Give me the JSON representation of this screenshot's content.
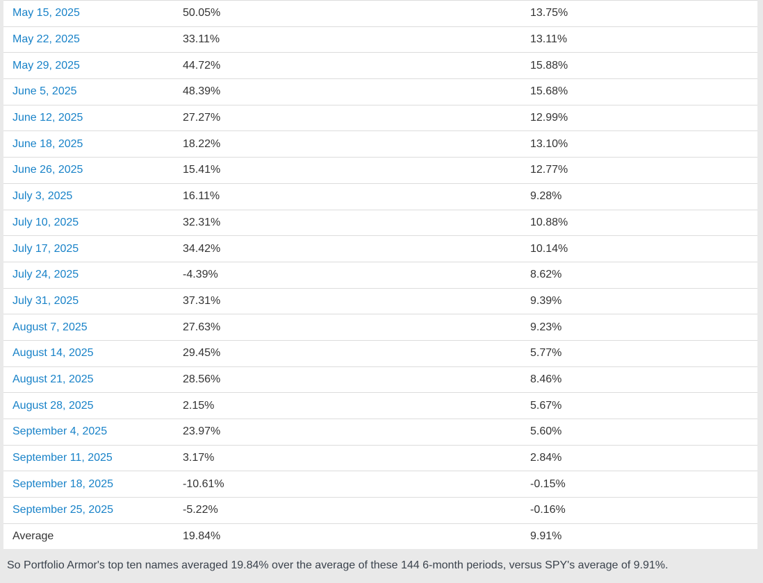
{
  "table": {
    "rows": [
      {
        "date": "May 15, 2025",
        "pa": "50.05%",
        "spy": "13.75%"
      },
      {
        "date": "May 22, 2025",
        "pa": "33.11%",
        "spy": "13.11%"
      },
      {
        "date": "May 29, 2025",
        "pa": "44.72%",
        "spy": "15.88%"
      },
      {
        "date": "June 5, 2025",
        "pa": "48.39%",
        "spy": "15.68%"
      },
      {
        "date": "June 12, 2025",
        "pa": "27.27%",
        "spy": "12.99%"
      },
      {
        "date": "June 18, 2025",
        "pa": "18.22%",
        "spy": "13.10%"
      },
      {
        "date": "June 26, 2025",
        "pa": "15.41%",
        "spy": "12.77%"
      },
      {
        "date": "July 3, 2025",
        "pa": "16.11%",
        "spy": "9.28%"
      },
      {
        "date": "July 10, 2025",
        "pa": "32.31%",
        "spy": "10.88%"
      },
      {
        "date": "July 17, 2025",
        "pa": "34.42%",
        "spy": "10.14%"
      },
      {
        "date": "July 24, 2025",
        "pa": "-4.39%",
        "spy": "8.62%"
      },
      {
        "date": "July 31, 2025",
        "pa": "37.31%",
        "spy": "9.39%"
      },
      {
        "date": "August 7, 2025",
        "pa": "27.63%",
        "spy": "9.23%"
      },
      {
        "date": "August 14, 2025",
        "pa": "29.45%",
        "spy": "5.77%"
      },
      {
        "date": "August 21, 2025",
        "pa": "28.56%",
        "spy": "8.46%"
      },
      {
        "date": "August 28, 2025",
        "pa": "2.15%",
        "spy": "5.67%"
      },
      {
        "date": "September 4, 2025",
        "pa": "23.97%",
        "spy": "5.60%"
      },
      {
        "date": "September 11, 2025",
        "pa": "3.17%",
        "spy": "2.84%"
      },
      {
        "date": "September 18, 2025",
        "pa": "-10.61%",
        "spy": "-0.15%"
      },
      {
        "date": "September 25, 2025",
        "pa": "-5.22%",
        "spy": "-0.16%"
      }
    ],
    "average": {
      "label": "Average",
      "pa": "19.84%",
      "spy": "9.91%"
    }
  },
  "footer": {
    "text": "So Portfolio Armor's top ten names averaged 19.84% over the average of these 144 6-month periods, versus SPY's average of 9.91%."
  },
  "colors": {
    "link_blue": "#1882c8",
    "row_border": "#dcdcdc",
    "page_bg": "#e9e9e9",
    "cell_text": "#333333",
    "footer_text": "#3a424c"
  }
}
